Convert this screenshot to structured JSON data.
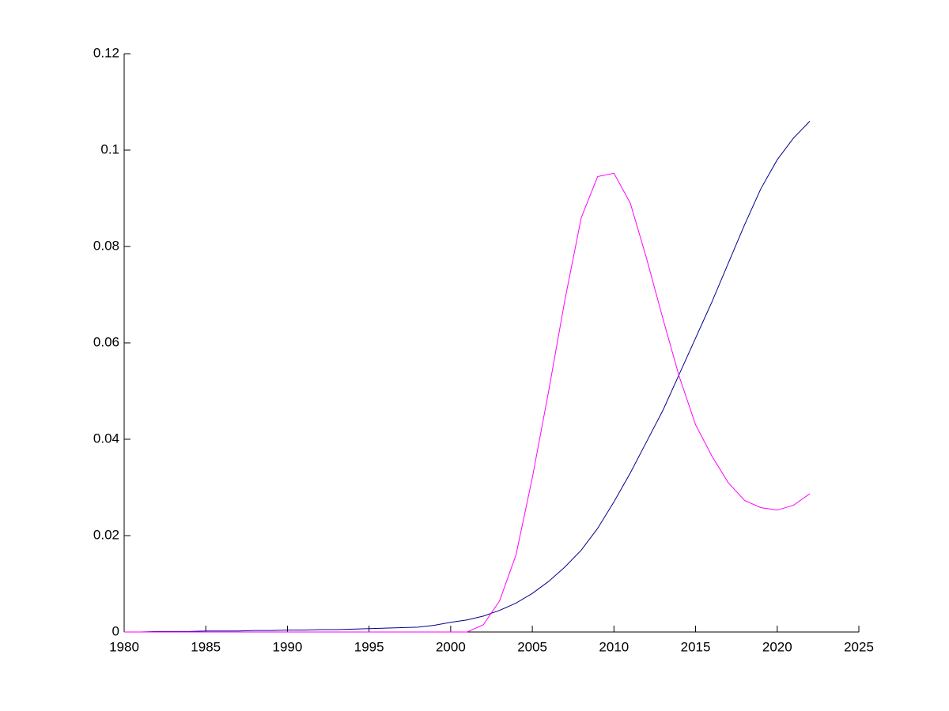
{
  "chart_data": {
    "type": "line",
    "x": [
      1980,
      1981,
      1982,
      1983,
      1984,
      1985,
      1986,
      1987,
      1988,
      1989,
      1990,
      1991,
      1992,
      1993,
      1994,
      1995,
      1996,
      1997,
      1998,
      1999,
      2000,
      2001,
      2002,
      2003,
      2004,
      2005,
      2006,
      2007,
      2008,
      2009,
      2010,
      2011,
      2012,
      2013,
      2014,
      2015,
      2016,
      2017,
      2018,
      2019,
      2020,
      2021,
      2022
    ],
    "series": [
      {
        "color": "#00008b",
        "values": [
          0,
          0,
          0.0001,
          0.0001,
          0.0001,
          0.0002,
          0.0002,
          0.0002,
          0.0003,
          0.0003,
          0.0004,
          0.0004,
          0.0005,
          0.0005,
          0.0006,
          0.0007,
          0.0008,
          0.0009,
          0.001,
          0.0014,
          0.002,
          0.0025,
          0.0033,
          0.0045,
          0.006,
          0.008,
          0.0105,
          0.0135,
          0.017,
          0.0215,
          0.027,
          0.033,
          0.0395,
          0.046,
          0.0535,
          0.061,
          0.0685,
          0.0765,
          0.0845,
          0.092,
          0.098,
          0.1025,
          0.106
        ]
      },
      {
        "color": "#ff00ff",
        "values": [
          0,
          0,
          0,
          0,
          0,
          0,
          0,
          0,
          0,
          0,
          0,
          0,
          0,
          0,
          0,
          0,
          0,
          0,
          0,
          0,
          0,
          0,
          0.0015,
          0.0065,
          0.016,
          0.032,
          0.05,
          0.069,
          0.086,
          0.0945,
          0.0952,
          0.089,
          0.0775,
          0.065,
          0.053,
          0.043,
          0.0365,
          0.031,
          0.0273,
          0.0258,
          0.0253,
          0.0263,
          0.0287
        ]
      }
    ],
    "xlim": [
      1980,
      2025
    ],
    "xticks": [
      1980,
      1985,
      1990,
      1995,
      2000,
      2005,
      2010,
      2015,
      2020,
      2025
    ],
    "ylim": [
      0,
      0.12
    ],
    "yticks": [
      0,
      0.02,
      0.04,
      0.06,
      0.08,
      0.1,
      0.12
    ]
  }
}
